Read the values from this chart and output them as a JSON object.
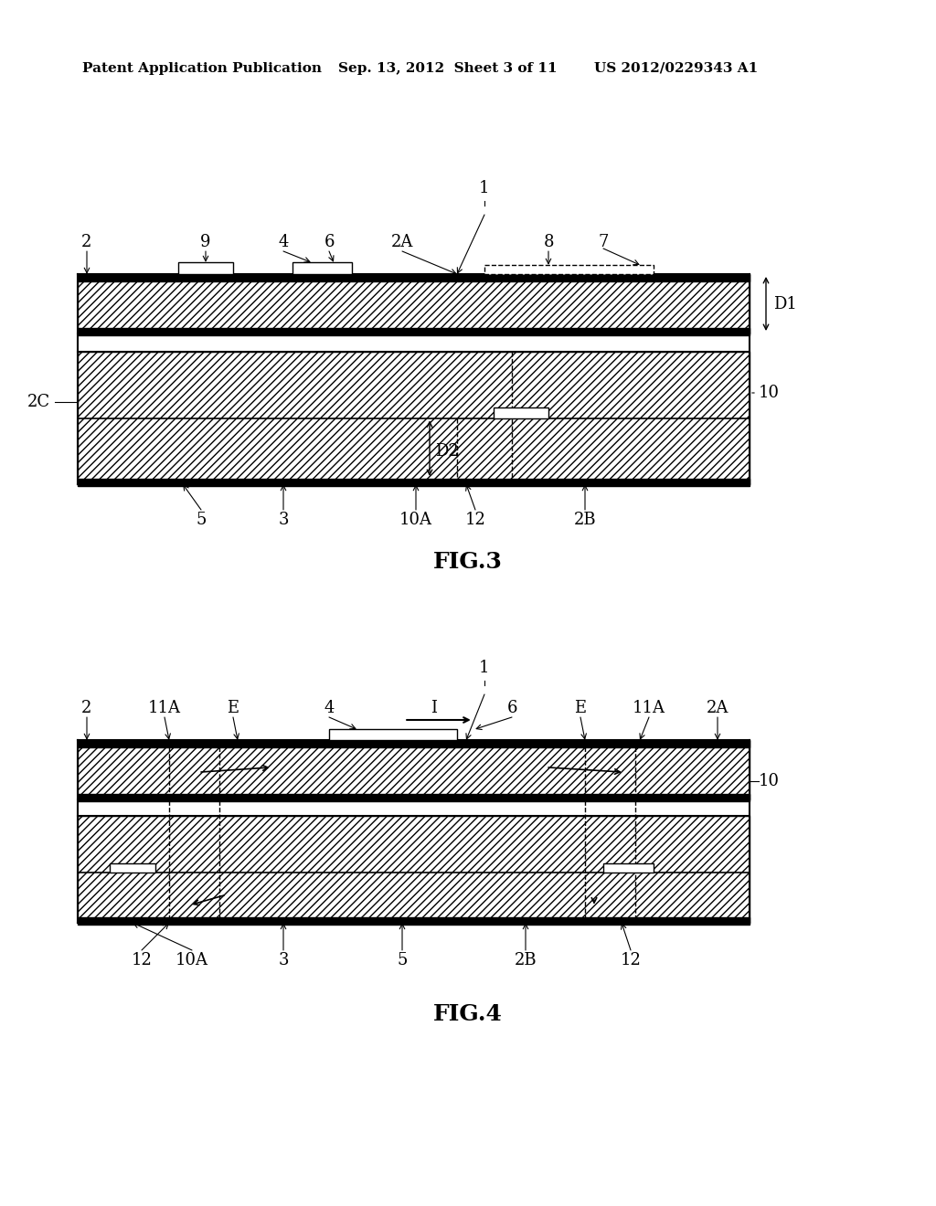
{
  "header_left": "Patent Application Publication",
  "header_mid": "Sep. 13, 2012  Sheet 3 of 11",
  "header_right": "US 2012/0229343 A1",
  "fig3_label": "FIG.3",
  "fig4_label": "FIG.4",
  "background_color": "#ffffff",
  "line_color": "#000000",
  "hatch_color": "#000000",
  "fig3": {
    "label_1": "1",
    "label_2": "2",
    "label_2A": "2A",
    "label_2B": "2B",
    "label_2C": "2C",
    "label_3": "3",
    "label_4": "4",
    "label_5": "5",
    "label_6": "6",
    "label_7": "7",
    "label_8": "8",
    "label_9": "9",
    "label_10": "10",
    "label_10A": "10A",
    "label_12": "12",
    "label_D1": "D1",
    "label_D2": "D2"
  },
  "fig4": {
    "label_1": "1",
    "label_2": "2",
    "label_2A": "2A",
    "label_2B": "2B",
    "label_3": "3",
    "label_4": "4",
    "label_5": "5",
    "label_6": "6",
    "label_10": "10",
    "label_10A": "10A",
    "label_11A_left": "11A",
    "label_11A_right": "11A",
    "label_12_left": "12",
    "label_12_right": "12",
    "label_E_left": "E",
    "label_E_right": "E",
    "label_I": "I"
  }
}
